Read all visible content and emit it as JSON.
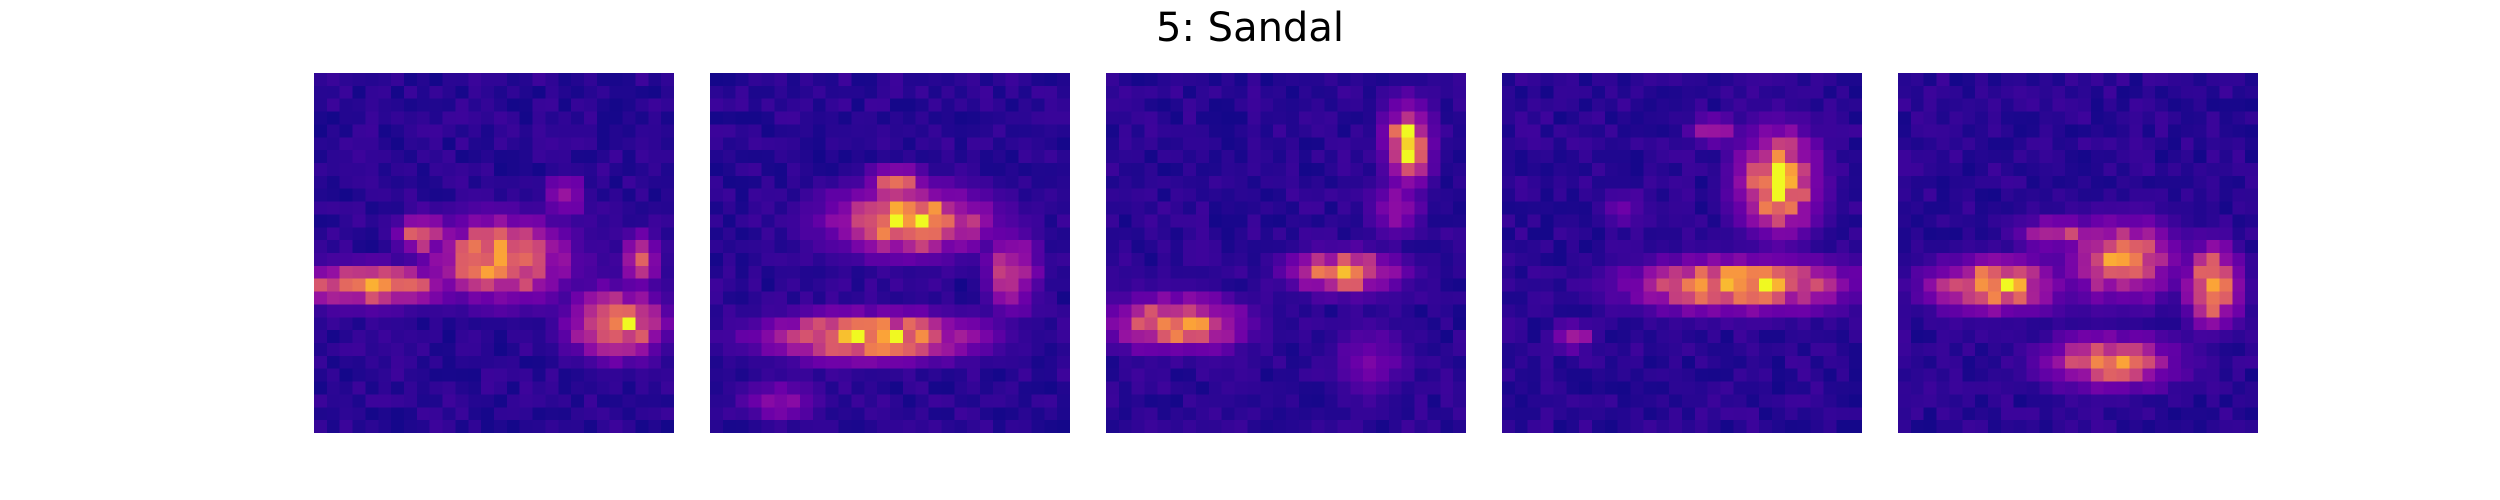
{
  "chart_data": {
    "type": "heatmap",
    "title": "5: Sandal",
    "colormap": "plasma",
    "grid_size": [
      28,
      28
    ],
    "value_range": [
      0,
      1
    ],
    "panels": [
      {
        "blobs": [
          {
            "r": 16,
            "c": 4,
            "rr": 1.5,
            "rc": 6,
            "v": 0.95
          },
          {
            "r": 14,
            "c": 14,
            "rr": 3,
            "rc": 5,
            "v": 1.0
          },
          {
            "r": 19,
            "c": 23,
            "rr": 2.5,
            "rc": 3.5,
            "v": 1.0
          },
          {
            "r": 12,
            "c": 8,
            "rr": 1.5,
            "rc": 2,
            "v": 0.8
          },
          {
            "r": 9,
            "c": 19,
            "rr": 1.5,
            "rc": 1.5,
            "v": 0.6
          },
          {
            "r": 14,
            "c": 25,
            "rr": 2,
            "rc": 1.5,
            "v": 0.7
          }
        ]
      },
      {
        "blobs": [
          {
            "r": 20,
            "c": 12,
            "rr": 1.8,
            "rc": 8,
            "v": 1.0
          },
          {
            "r": 11,
            "c": 15,
            "rr": 2.5,
            "rc": 6,
            "v": 1.0
          },
          {
            "r": 8,
            "c": 14,
            "rr": 1.2,
            "rc": 2,
            "v": 0.9
          },
          {
            "r": 15,
            "c": 23,
            "rr": 3,
            "rc": 2,
            "v": 0.7
          },
          {
            "r": 25,
            "c": 5,
            "rr": 1.5,
            "rc": 3,
            "v": 0.45
          }
        ]
      },
      {
        "blobs": [
          {
            "r": 5,
            "c": 23,
            "rr": 3,
            "rc": 1.8,
            "v": 1.0
          },
          {
            "r": 15,
            "c": 18,
            "rr": 1.5,
            "rc": 4,
            "v": 1.0
          },
          {
            "r": 19,
            "c": 5,
            "rr": 2,
            "rc": 5,
            "v": 0.95
          },
          {
            "r": 10,
            "c": 22,
            "rr": 2,
            "rc": 2,
            "v": 0.5
          },
          {
            "r": 22,
            "c": 20,
            "rr": 3,
            "rc": 3,
            "v": 0.35
          }
        ]
      },
      {
        "blobs": [
          {
            "r": 8,
            "c": 21,
            "rr": 4,
            "rc": 3,
            "v": 1.0
          },
          {
            "r": 16,
            "c": 18,
            "rr": 2,
            "rc": 8,
            "v": 1.0
          },
          {
            "r": 4,
            "c": 16,
            "rr": 1,
            "rc": 2,
            "v": 0.6
          },
          {
            "r": 20,
            "c": 5,
            "rr": 1,
            "rc": 1.5,
            "v": 0.6
          },
          {
            "r": 10,
            "c": 9,
            "rr": 1.5,
            "rc": 2,
            "v": 0.3
          }
        ]
      },
      {
        "blobs": [
          {
            "r": 16,
            "c": 7,
            "rr": 2,
            "rc": 5,
            "v": 0.95
          },
          {
            "r": 14,
            "c": 17,
            "rr": 3,
            "rc": 4,
            "v": 0.9
          },
          {
            "r": 16,
            "c": 24,
            "rr": 3,
            "rc": 2,
            "v": 1.0
          },
          {
            "r": 22,
            "c": 16,
            "rr": 2,
            "rc": 5,
            "v": 0.85
          },
          {
            "r": 12,
            "c": 12,
            "rr": 1.2,
            "rc": 3,
            "v": 0.65
          }
        ]
      }
    ]
  }
}
